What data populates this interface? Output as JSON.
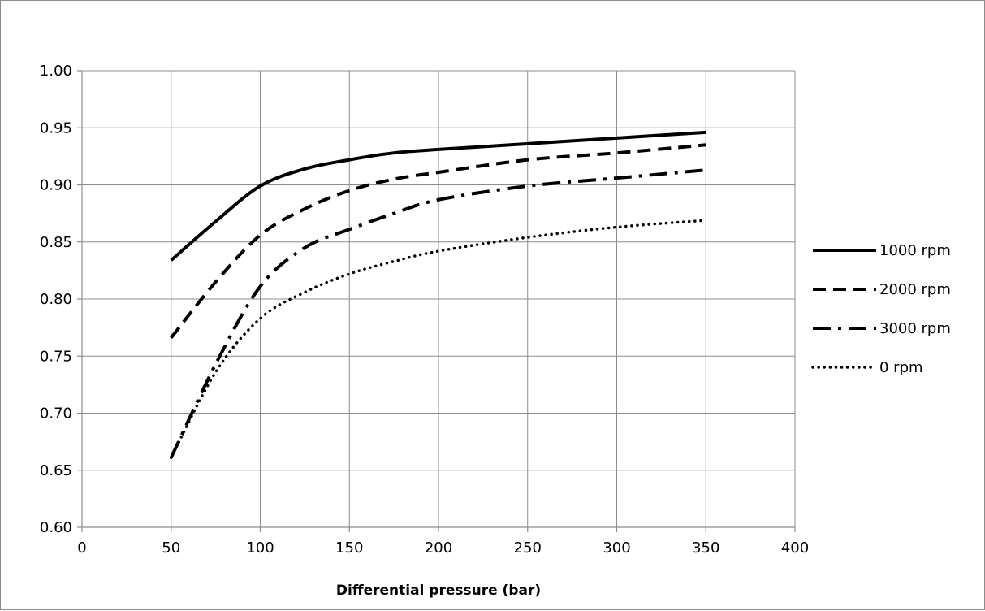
{
  "chart_data": {
    "type": "line",
    "title": "",
    "xlabel": "Differential pressure (bar)",
    "ylabel": "",
    "xlim": [
      0,
      400
    ],
    "ylim": [
      0.6,
      1.0
    ],
    "x_ticks": [
      "0",
      "50",
      "100",
      "150",
      "200",
      "250",
      "300",
      "350",
      "400"
    ],
    "y_ticks": [
      "0.60",
      "0.65",
      "0.70",
      "0.75",
      "0.80",
      "0.85",
      "0.90",
      "0.95",
      "1.00"
    ],
    "grid": true,
    "legend_position": "right",
    "series": [
      {
        "name": "1000 rpm",
        "line_style": "solid",
        "x": [
          50,
          75,
          100,
          125,
          150,
          175,
          200,
          250,
          300,
          350
        ],
        "y": [
          0.834,
          0.868,
          0.899,
          0.914,
          0.922,
          0.928,
          0.931,
          0.936,
          0.941,
          0.946
        ]
      },
      {
        "name": "2000 rpm",
        "line_style": "dashed",
        "x": [
          50,
          75,
          100,
          125,
          150,
          175,
          200,
          250,
          300,
          350
        ],
        "y": [
          0.766,
          0.815,
          0.856,
          0.879,
          0.895,
          0.905,
          0.911,
          0.922,
          0.928,
          0.935
        ]
      },
      {
        "name": "3000 rpm",
        "line_style": "dash-dot",
        "x": [
          50,
          75,
          100,
          125,
          150,
          175,
          200,
          250,
          300,
          350
        ],
        "y": [
          0.661,
          0.743,
          0.811,
          0.845,
          0.861,
          0.875,
          0.887,
          0.899,
          0.906,
          0.913
        ]
      },
      {
        "name": "0 rpm",
        "line_style": "dotted",
        "x": [
          50,
          75,
          100,
          125,
          150,
          175,
          200,
          250,
          300,
          350
        ],
        "y": [
          0.661,
          0.736,
          0.783,
          0.806,
          0.822,
          0.833,
          0.842,
          0.854,
          0.863,
          0.869
        ]
      }
    ],
    "colors": {
      "lines": "#000000",
      "grid": "#8c8c8c"
    }
  }
}
